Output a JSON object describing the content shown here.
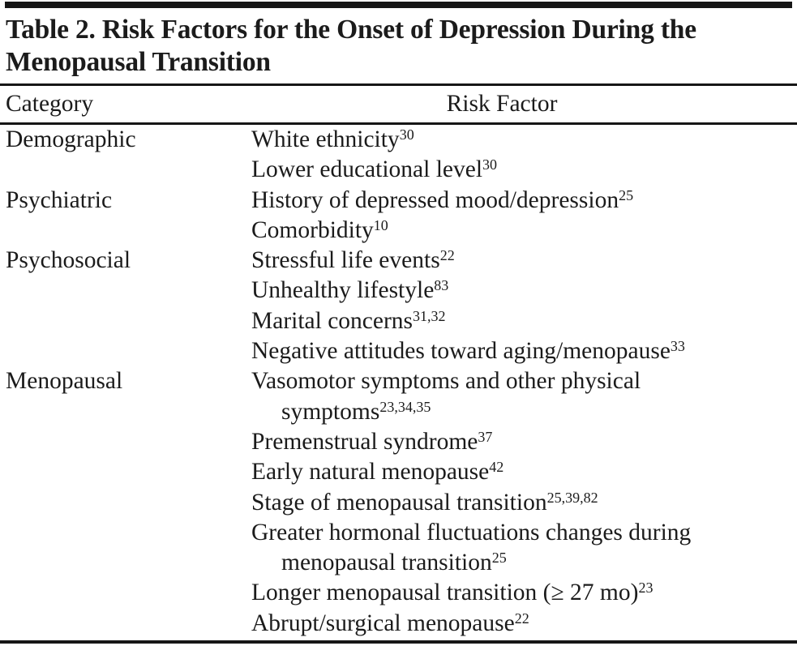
{
  "title": {
    "line1": "Table 2. Risk Factors for the Onset of Depression During the",
    "line2": "Menopausal Transition"
  },
  "table": {
    "header": {
      "category": "Category",
      "risk_factor": "Risk Factor"
    },
    "rows": [
      {
        "category": "Demographic",
        "text": "White ethnicity",
        "sup": "30"
      },
      {
        "category": "",
        "text": "Lower educational level",
        "sup": "30"
      },
      {
        "category": "Psychiatric",
        "text": "History of depressed mood/depression",
        "sup": "25"
      },
      {
        "category": "",
        "text": "Comorbidity",
        "sup": "10"
      },
      {
        "category": "Psychosocial",
        "text": "Stressful life events",
        "sup": "22"
      },
      {
        "category": "",
        "text": "Unhealthy lifestyle",
        "sup": "83"
      },
      {
        "category": "",
        "text": "Marital concerns",
        "sup": "31,32"
      },
      {
        "category": "",
        "text": "Negative attitudes toward aging/menopause",
        "sup": "33"
      },
      {
        "category": "Menopausal",
        "text": "Vasomotor symptoms and other physical",
        "sup": ""
      },
      {
        "category": "",
        "text": "symptoms",
        "sup": "23,34,35"
      },
      {
        "category": "",
        "text": "Premenstrual syndrome",
        "sup": "37"
      },
      {
        "category": "",
        "text": "Early natural menopause",
        "sup": "42"
      },
      {
        "category": "",
        "text": "Stage of menopausal transition",
        "sup": "25,39,82"
      },
      {
        "category": "",
        "text": "Greater hormonal fluctuations changes during",
        "sup": ""
      },
      {
        "category": "",
        "text": "menopausal transition",
        "sup": "25"
      },
      {
        "category": "",
        "text": "Longer menopausal transition (≥ 27 mo)",
        "sup": "23"
      },
      {
        "category": "",
        "text": "Abrupt/surgical menopause",
        "sup": "22"
      }
    ]
  },
  "colors": {
    "text": "#1b1b1b",
    "rule": "#161616",
    "background": "#ffffff"
  }
}
